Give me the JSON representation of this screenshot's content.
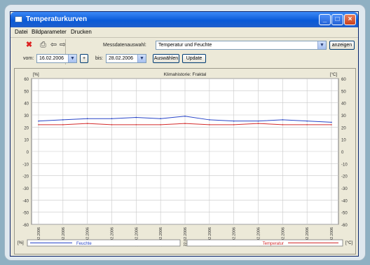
{
  "window": {
    "title": "Temperaturkurven"
  },
  "menu": [
    "Datei",
    "Bildparameter",
    "Drucken"
  ],
  "toolbar": {
    "measure_label": "Messdatenauswahl:",
    "measure_value": "Temperatur und Feuchte",
    "anzeigen_label": "anzeigen",
    "from_label": "vom:",
    "from_value": "16.02.2006",
    "plus_label": "+",
    "to_label": "bis:",
    "to_value": "28.02.2006",
    "auswahl_label": "Auswählen",
    "update_label": "Update"
  },
  "icons": {
    "stop": "stop-icon",
    "print": "print-icon",
    "back": "arrow-left-icon",
    "forward": "arrow-right-icon"
  },
  "colors": {
    "humidity": "#2845c8",
    "temperature": "#d32a2a"
  },
  "chart_data": {
    "type": "line",
    "title": "Klimahistorie: Fraktal",
    "left_unit": "[%]",
    "right_unit": "[°C]",
    "ylim": [
      -60,
      60
    ],
    "y_ticks": [
      60,
      50,
      40,
      30,
      20,
      10,
      0,
      -10,
      -20,
      -30,
      -40,
      -50,
      -60
    ],
    "x_labels": [
      "16.02.2006",
      "17.02.2006",
      "18.02.2006",
      "19.02.2006",
      "20.02.2006",
      "21.02.2006",
      "22.02.2006",
      "23.02.2006",
      "24.02.2006",
      "25.02.2006",
      "26.02.2006",
      "27.02.2006",
      "28.02.2006"
    ],
    "grid": true,
    "series": [
      {
        "name": "Feuchte",
        "color": "#2845c8",
        "values": [
          25,
          26,
          27,
          27,
          28,
          27,
          29,
          26,
          25,
          25,
          26,
          25,
          24
        ]
      },
      {
        "name": "Temperatur",
        "color": "#d32a2a",
        "values": [
          22,
          22,
          23,
          22,
          22,
          22,
          23,
          22,
          22,
          23,
          22,
          22,
          22
        ]
      }
    ],
    "legend_left_label": "Feuchte",
    "legend_right_label": "Temperatur",
    "legend_left_unit": "[%]",
    "legend_right_unit": "[°C]"
  }
}
